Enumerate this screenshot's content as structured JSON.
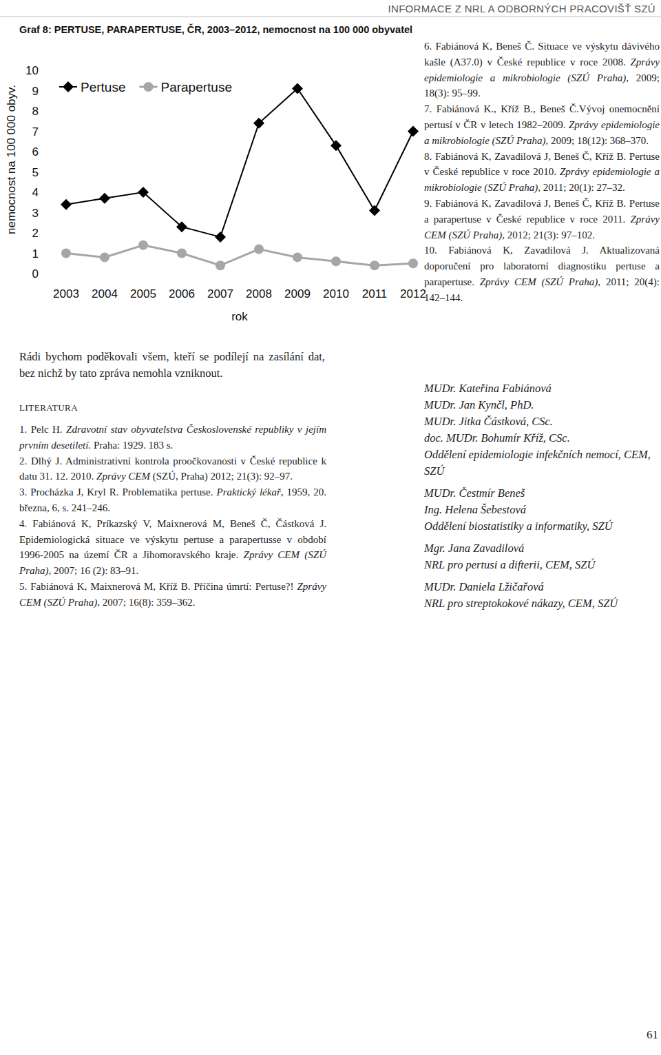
{
  "header": "INFORMACE Z NRL A ODBORNÝCH PRACOVIŠŤ SZÚ",
  "chart_data": {
    "type": "line",
    "title": "Graf 8: PERTUSE, PARAPERTUSE, ČR, 2003–2012, nemocnost na 100 000 obyvatel",
    "x_label": "rok",
    "y_label": "nemocnost na 100 000 obyv.",
    "categories": [
      "2003",
      "2004",
      "2005",
      "2006",
      "2007",
      "2008",
      "2009",
      "2010",
      "2011",
      "2012"
    ],
    "series": [
      {
        "name": "Pertuse",
        "color": "#000000",
        "marker": "diamond",
        "values": [
          3.4,
          3.7,
          4.0,
          2.3,
          1.8,
          7.4,
          9.1,
          6.3,
          3.1,
          7.0
        ]
      },
      {
        "name": "Parapertuse",
        "color": "#a6a6a6",
        "marker": "circle",
        "values": [
          1.0,
          0.8,
          1.4,
          1.0,
          0.4,
          1.2,
          0.8,
          0.6,
          0.4,
          0.5
        ]
      }
    ],
    "ylim": [
      0,
      10
    ],
    "yticks": [
      0,
      1,
      2,
      3,
      4,
      5,
      6,
      7,
      8,
      9,
      10
    ],
    "grid": false,
    "legend": "top-left"
  },
  "acknowledgement": "Rádi bychom poděkovali všem, kteří se podílejí na zasílání dat, bez nichž by tato zpráva nemohla vzniknout.",
  "literature": {
    "heading": "LITERATURA",
    "references": [
      {
        "number": "1.",
        "before": "Pelc H. ",
        "italic": "Zdravotní stav obyvatelstva Československé republiky v jejím prvním desetiletí.",
        "after": " Praha: 1929. 183 s."
      },
      {
        "number": "2.",
        "before": "Dlhý J. Administrativní kontrola proočkovanosti v České republice k datu 31. 12. 2010. ",
        "italic": "Zprávy CEM",
        "after": " (SZÚ, Praha) 2012; 21(3): 92–97."
      },
      {
        "number": "3.",
        "before": "Procházka J, Kryl R. Problematika pertuse. ",
        "italic": "Praktický lékař,",
        "after": " 1959, 20. března, 6, s. 241–246."
      },
      {
        "number": "4.",
        "before": "Fabiánová K, Príkazský V, Maixnerová M, Beneš Č, Částková J. Epidemiologická situace ve výskytu pertuse a parapertusse v období 1996-2005 na území ČR a Jihomoravského kraje. ",
        "italic": "Zprávy CEM (SZÚ Praha),",
        "after": " 2007; 16 (2): 83–91."
      },
      {
        "number": "5.",
        "before": "Fabiánová K, Maixnerová M, Kříž B. Příčina úmrtí: Pertuse?! ",
        "italic": "Zprávy CEM (SZÚ Praha),",
        "after": " 2007; 16(8): 359–362."
      },
      {
        "number": "6.",
        "before": "Fabiánová K, Beneš Č. Situace ve výskytu dávivého kašle (A37.0) v České republice v roce 2008. ",
        "italic": "Zprávy epidemiologie a mikrobiologie (SZÚ Praha),",
        "after": " 2009; 18(3): 95–99."
      },
      {
        "number": "7.",
        "before": "Fabiánová K., Kříž B., Beneš Č.Vývoj onemocnění pertusí v ČR v letech 1982–2009. ",
        "italic": "Zprávy epidemiologie a mikrobiologie (SZÚ Praha),",
        "after": " 2009; 18(12): 368–370."
      },
      {
        "number": "8.",
        "before": "Fabiánová K, Zavadilová J, Beneš Č, Kříž B. Pertuse v České republice v roce 2010. ",
        "italic": "Zprávy epidemiologie a mikrobiologie (SZÚ Praha),",
        "after": " 2011; 20(1): 27–32."
      },
      {
        "number": "9.",
        "before": "Fabiánová K, Zavadilová J, Beneš Č, Kříž B. Pertuse a parapertuse v České republice v roce 2011. ",
        "italic": "Zprávy CEM (SZÚ Praha),",
        "after": " 2012; 21(3): 97–102."
      },
      {
        "number": "10.",
        "before": "Fabiánová K, Zavadilová J. Aktualizovaná doporučení pro laboratorní diagnostiku pertuse a parapertuse. ",
        "italic": "Zprávy CEM (SZÚ Praha),",
        "after": " 2011; 20(4): 142–144."
      }
    ]
  },
  "authors": [
    {
      "names": [
        "MUDr. Kateřina Fabiánová",
        "MUDr. Jan Kynčl, PhD.",
        "MUDr. Jitka Částková, CSc.",
        "doc. MUDr. Bohumír Kříž, CSc."
      ],
      "department": "Oddělení epidemiologie infekčních nemocí, CEM, SZÚ"
    },
    {
      "names": [
        "MUDr. Čestmír Beneš",
        "Ing. Helena Šebestová"
      ],
      "department": "Oddělení biostatistiky a informatiky, SZÚ"
    },
    {
      "names": [
        "Mgr. Jana Zavadilová"
      ],
      "department": "NRL pro pertusi a difterii, CEM, SZÚ"
    },
    {
      "names": [
        "MUDr. Daniela Lžičařová"
      ],
      "department": "NRL pro streptokokové nákazy, CEM, SZÚ"
    }
  ],
  "page_number": "61"
}
